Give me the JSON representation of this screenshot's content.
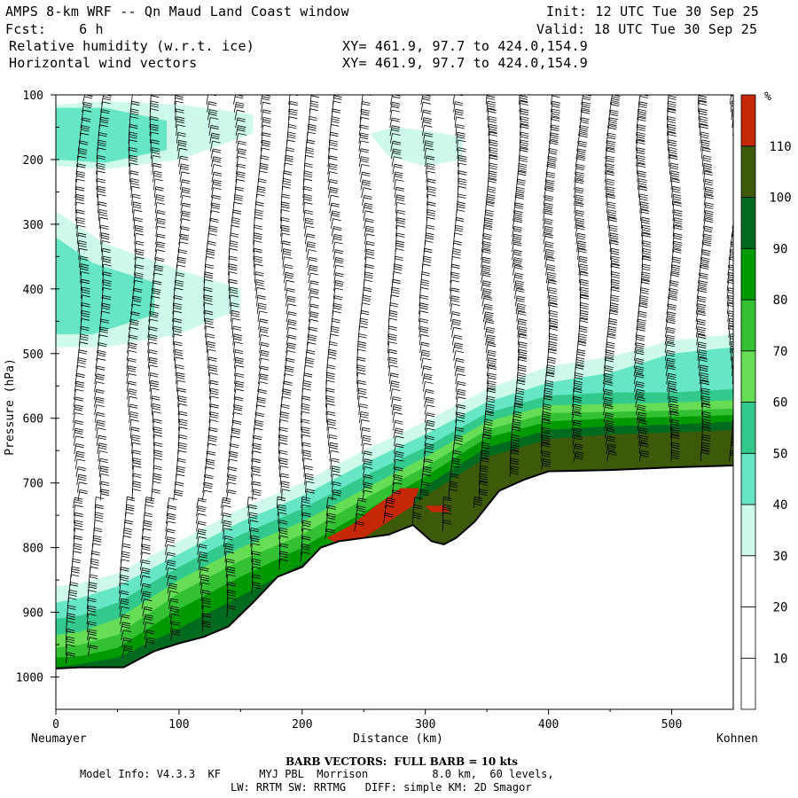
{
  "header": {
    "title": "AMPS 8-km WRF -- Qn Maud Land Coast window",
    "init": "Init: 12 UTC Tue 30 Sep 25",
    "fcst": "Fcst:    6 h",
    "valid": "Valid: 18 UTC Tue 30 Sep 25",
    "field1": "Relative humidity (w.r.t. ice)",
    "xy1": "XY= 461.9, 97.7 to 424.0,154.9",
    "field2": "Horizontal wind vectors",
    "xy2": "XY= 461.9, 97.7 to 424.0,154.9"
  },
  "footer": {
    "barb": "BARB VECTORS:  FULL BARB = 10 kts",
    "line1": "Model Info: V4.3.3  KF      MYJ PBL  Morrison          8.0 km,  60 levels,",
    "line2": "LW: RRTM SW: RRTMG   DIFF: simple KM: 2D Smagor"
  },
  "colors": {
    "terrain": "#ffffff",
    "line": "#000000"
  },
  "chart_data": {
    "type": "cross-section",
    "title": "Relative humidity (w.r.t. ice) and horizontal wind vectors",
    "xlabel": "Distance (km)",
    "ylabel": "Pressure (hPa)",
    "left_station": "Neumayer",
    "right_station": "Kohnen",
    "xlim": [
      0,
      550
    ],
    "ylim": [
      1050,
      100
    ],
    "x_ticks": [
      0,
      100,
      200,
      300,
      400,
      500
    ],
    "y_ticks": [
      100,
      200,
      300,
      400,
      500,
      600,
      700,
      800,
      900,
      1000
    ],
    "colorbar": {
      "unit": "%",
      "levels": [
        10,
        20,
        30,
        40,
        50,
        60,
        70,
        80,
        90,
        100,
        110
      ],
      "colors": [
        "#ffffff",
        "#ffffff",
        "#ffffff",
        "#cdfae9",
        "#66e6c4",
        "#33c98c",
        "#66dd55",
        "#33c133",
        "#009900",
        "#006b1e",
        "#3d5a0a",
        "#c42808"
      ]
    },
    "terrain_surface": {
      "distance_km": [
        0,
        20,
        40,
        55,
        65,
        80,
        100,
        120,
        140,
        160,
        180,
        200,
        215,
        230,
        250,
        270,
        290,
        305,
        315,
        325,
        340,
        360,
        380,
        400,
        450,
        500,
        550
      ],
      "pressure_hpa": [
        987,
        985,
        985,
        985,
        975,
        960,
        948,
        938,
        922,
        885,
        845,
        830,
        800,
        790,
        785,
        780,
        765,
        790,
        795,
        785,
        760,
        712,
        695,
        682,
        680,
        676,
        673
      ]
    },
    "rh_regions": [
      {
        "level": 30,
        "distance_km": [
          0,
          20,
          50,
          100,
          150,
          200,
          250,
          300,
          350,
          400,
          450,
          500,
          550
        ],
        "top_pressure_hpa": [
          860,
          855,
          840,
          790,
          740,
          700,
          650,
          605,
          555,
          520,
          505,
          480,
          470
        ]
      },
      {
        "level": 40,
        "distance_km": [
          0,
          20,
          50,
          100,
          150,
          200,
          250,
          300,
          350,
          400,
          450,
          500,
          550
        ],
        "top_pressure_hpa": [
          885,
          878,
          860,
          810,
          760,
          720,
          670,
          625,
          575,
          545,
          530,
          500,
          490
        ]
      },
      {
        "level": 50,
        "distance_km": [
          0,
          20,
          50,
          100,
          150,
          200,
          250,
          300,
          350,
          400,
          450,
          500,
          550
        ],
        "top_pressure_hpa": [
          910,
          905,
          885,
          830,
          780,
          740,
          690,
          645,
          592,
          565,
          560,
          560,
          555
        ]
      },
      {
        "level": 60,
        "distance_km": [
          0,
          20,
          50,
          100,
          150,
          200,
          250,
          300,
          350,
          400,
          450,
          500,
          550
        ],
        "top_pressure_hpa": [
          935,
          930,
          910,
          850,
          800,
          760,
          710,
          660,
          605,
          580,
          578,
          576,
          572
        ]
      },
      {
        "level": 70,
        "distance_km": [
          0,
          20,
          50,
          100,
          150,
          200,
          250,
          300,
          350,
          400,
          450,
          500,
          550
        ],
        "top_pressure_hpa": [
          955,
          950,
          935,
          870,
          820,
          780,
          725,
          675,
          618,
          592,
          590,
          588,
          585
        ]
      },
      {
        "level": 80,
        "distance_km": [
          0,
          20,
          50,
          100,
          150,
          200,
          250,
          300,
          350,
          400,
          450,
          500,
          550
        ],
        "top_pressure_hpa": [
          970,
          968,
          955,
          895,
          845,
          800,
          745,
          690,
          630,
          605,
          600,
          598,
          595
        ]
      },
      {
        "level": 90,
        "distance_km": [
          0,
          20,
          50,
          100,
          150,
          200,
          250,
          300,
          350,
          400,
          450,
          500,
          550
        ],
        "top_pressure_hpa": [
          985,
          980,
          970,
          925,
          875,
          825,
          765,
          705,
          645,
          618,
          612,
          610,
          605
        ]
      },
      {
        "level": 100,
        "distance_km": [
          0,
          20,
          50,
          100,
          150,
          200,
          250,
          300,
          350,
          400,
          450,
          500,
          550
        ],
        "top_pressure_hpa": [
          1000,
          1000,
          995,
          960,
          910,
          850,
          785,
          720,
          660,
          632,
          625,
          622,
          618
        ]
      }
    ],
    "rh_patches": [
      {
        "level": 110,
        "distance_km": [
          220,
          240,
          260,
          280,
          295,
          290,
          270,
          250,
          230
        ],
        "pressure_hpa": [
          785,
          765,
          735,
          708,
          708,
          735,
          760,
          785,
          795
        ]
      },
      {
        "level": 110,
        "distance_km": [
          300,
          315,
          320,
          305
        ],
        "pressure_hpa": [
          735,
          735,
          745,
          745
        ]
      },
      {
        "level": 30,
        "distance_km": [
          0,
          40,
          100,
          160,
          160,
          100,
          40,
          0
        ],
        "pressure_hpa": [
          115,
          110,
          115,
          130,
          160,
          200,
          215,
          210
        ]
      },
      {
        "level": 40,
        "distance_km": [
          0,
          40,
          90,
          90,
          40,
          0
        ],
        "pressure_hpa": [
          120,
          120,
          140,
          185,
          205,
          200
        ]
      },
      {
        "level": 30,
        "distance_km": [
          0,
          40,
          100,
          150,
          150,
          100,
          40,
          0
        ],
        "pressure_hpa": [
          280,
          330,
          370,
          400,
          430,
          470,
          490,
          490
        ]
      },
      {
        "level": 40,
        "distance_km": [
          0,
          30,
          80,
          80,
          30,
          0
        ],
        "pressure_hpa": [
          320,
          360,
          390,
          440,
          470,
          470
        ]
      },
      {
        "level": 30,
        "distance_km": [
          255,
          275,
          300,
          330,
          330,
          300,
          270
        ],
        "pressure_hpa": [
          160,
          150,
          155,
          165,
          200,
          210,
          195
        ]
      }
    ],
    "wind_barbs": {
      "columns_km": [
        15,
        32,
        58,
        75,
        95,
        120,
        140,
        160,
        182,
        200,
        220,
        245,
        270,
        295,
        320,
        345,
        370,
        395,
        420,
        445,
        470,
        495,
        520,
        545
      ],
      "levels_hpa_step": 12,
      "full_barb_kts": 10
    }
  }
}
